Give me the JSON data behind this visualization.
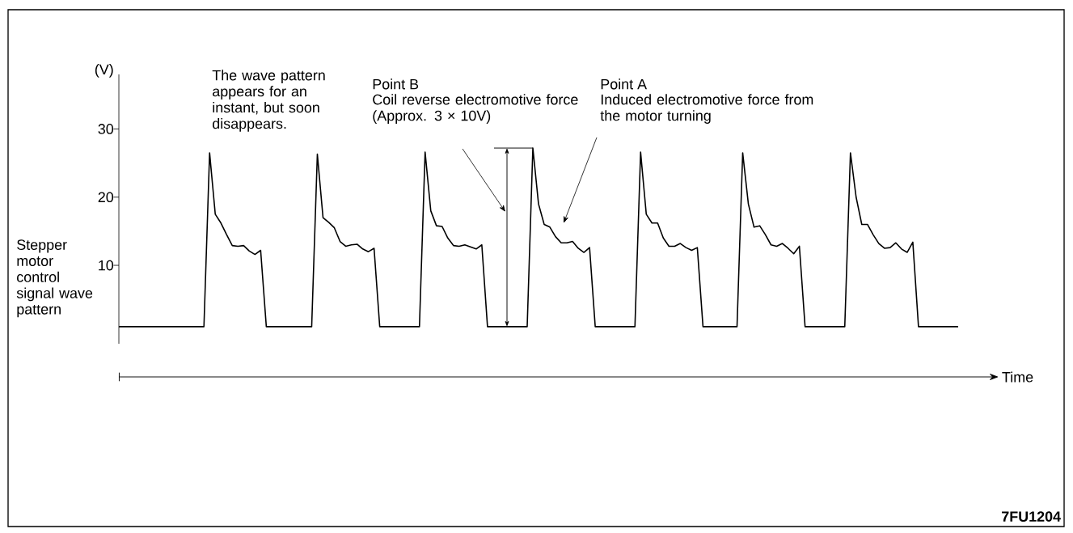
{
  "chart_data": {
    "type": "line",
    "ylabel": "(V)",
    "xlabel": "Time",
    "color": "#000000",
    "categories": [
      null,
      null,
      null,
      null,
      null,
      null,
      null,
      null,
      null,
      null,
      null,
      null,
      null,
      null,
      null,
      null,
      null,
      null,
      null,
      null,
      null,
      null,
      null,
      null,
      null,
      null,
      null,
      null,
      null,
      null,
      null,
      null,
      null,
      null,
      null,
      null,
      null,
      null,
      null,
      null,
      null,
      null,
      null,
      null,
      null,
      null,
      null,
      null,
      null,
      null,
      null,
      null,
      null,
      null,
      null,
      null,
      null,
      null,
      null,
      null,
      null,
      null,
      null,
      null,
      null,
      null,
      null,
      null,
      null,
      null,
      null,
      null,
      null,
      null,
      null,
      null,
      null,
      null,
      null,
      null,
      null,
      null,
      null,
      null,
      null,
      null,
      null,
      null,
      null,
      null,
      null,
      null,
      null,
      null,
      null,
      null,
      null,
      null,
      null,
      null,
      null,
      null,
      null,
      null,
      null,
      null,
      null,
      null,
      null,
      null,
      null,
      null,
      null,
      null,
      null,
      null,
      null,
      null,
      null,
      null,
      null,
      null,
      null,
      null,
      null,
      null,
      null,
      null,
      null,
      null,
      null,
      null,
      null,
      null,
      null,
      null,
      null,
      null,
      null,
      null,
      null,
      null,
      null,
      null,
      null,
      null,
      null,
      null,
      null
    ],
    "values": [
      1,
      1,
      1,
      1,
      1,
      1,
      1,
      1,
      1,
      1,
      1,
      1,
      1,
      1,
      1,
      1,
      26.5,
      17.5,
      16.2,
      14.5,
      12.9,
      12.8,
      12.9,
      12.1,
      11.6,
      12.2,
      1,
      1,
      1,
      1,
      1,
      1,
      1,
      1,
      1,
      26.3,
      17.0,
      16.3,
      15.5,
      13.5,
      12.8,
      13.0,
      13.1,
      12.4,
      12.0,
      12.5,
      1,
      1,
      1,
      1,
      1,
      1,
      1,
      1,
      26.6,
      18.0,
      15.8,
      15.7,
      14.0,
      12.9,
      12.8,
      13.0,
      12.7,
      12.4,
      13.0,
      1,
      1,
      1,
      1,
      1,
      1,
      1,
      1,
      27.2,
      19.0,
      16.0,
      15.6,
      14.2,
      13.3,
      13.3,
      13.5,
      12.5,
      11.9,
      12.6,
      1,
      1,
      1,
      1,
      1,
      1,
      1,
      1,
      26.6,
      17.5,
      16.2,
      16.2,
      14.0,
      12.8,
      12.8,
      13.2,
      12.6,
      12.2,
      12.6,
      1,
      1,
      1,
      1,
      1,
      1,
      1,
      26.5,
      19.0,
      15.6,
      15.8,
      14.5,
      13.0,
      12.8,
      13.2,
      12.5,
      11.7,
      12.8,
      1,
      1,
      1,
      1,
      1,
      1,
      1,
      1,
      26.5,
      20.0,
      16.0,
      16.0,
      14.5,
      13.2,
      12.5,
      12.6,
      13.3,
      12.4,
      11.9,
      13.4,
      1,
      1,
      1,
      1,
      1,
      1,
      1,
      1
    ],
    "ylim": [
      -1.5,
      38
    ],
    "yticks": [
      10,
      20,
      30
    ],
    "tick_labels": "y",
    "annotations": [
      "The wave pattern appears for an instant, but soon disappears.",
      "Point B",
      "Coil reverse electromotive force (Approx. 3 × 10V)",
      "Point A",
      "Induced electromotive force from the motor turning",
      "Stepper motor control signal wave pattern",
      "7FU1204"
    ]
  }
}
